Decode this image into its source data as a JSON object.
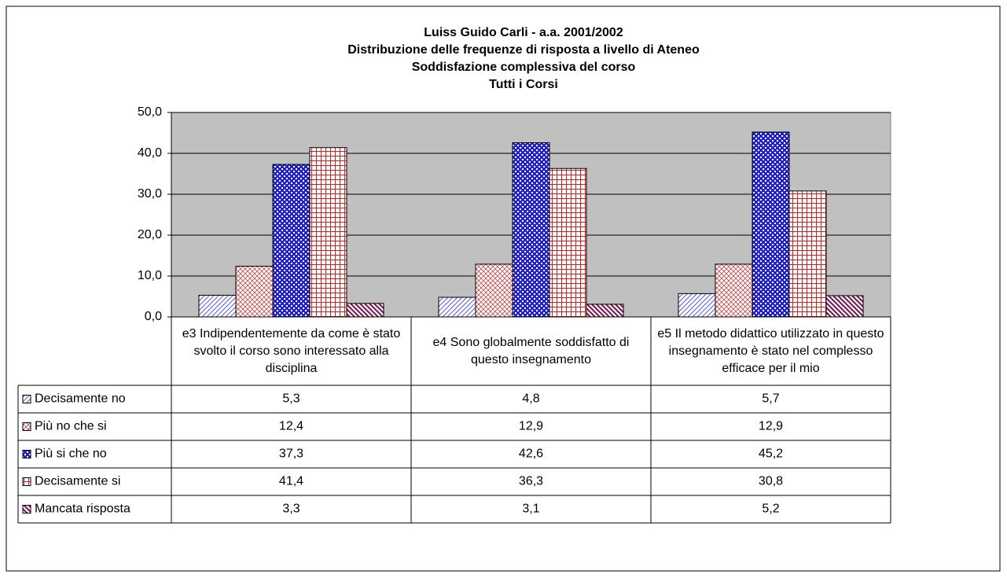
{
  "chart_data": {
    "type": "bar",
    "title": [
      "Luiss Guido Carli - a.a. 2001/2002",
      "Distribuzione delle frequenze di risposta a livello di Ateneo",
      "Soddisfazione complessiva del corso",
      "Tutti i Corsi"
    ],
    "categories": [
      "e3 Indipendentemente da come è stato svolto il corso sono interessato alla disciplina",
      "e4 Sono globalmente soddisfatto di questo insegnamento",
      "e5 Il metodo didattico utilizzato in questo insegnamento è stato nel complesso efficace per il mio"
    ],
    "series": [
      {
        "name": "Decisamente no",
        "color": "#5a5ad0",
        "values": [
          5.3,
          4.8,
          5.7
        ],
        "value_labels": [
          "5,3",
          "4,8",
          "5,7"
        ]
      },
      {
        "name": "Più no che si",
        "color": "#c04848",
        "values": [
          12.4,
          12.9,
          12.9
        ],
        "value_labels": [
          "12,4",
          "12,9",
          "12,9"
        ]
      },
      {
        "name": "Più si che no",
        "color": "#2424c8",
        "values": [
          37.3,
          42.6,
          45.2
        ],
        "value_labels": [
          "37,3",
          "42,6",
          "45,2"
        ]
      },
      {
        "name": "Decisamente si",
        "color": "#d02020",
        "values": [
          41.4,
          36.3,
          30.8
        ],
        "value_labels": [
          "41,4",
          "36,3",
          "30,8"
        ]
      },
      {
        "name": "Mancata risposta",
        "color": "#7a1e5a",
        "values": [
          3.3,
          3.1,
          5.2
        ],
        "value_labels": [
          "3,3",
          "3,1",
          "5,2"
        ]
      }
    ],
    "ylim": [
      0,
      50
    ],
    "yticks": [
      {
        "value": 0,
        "label": "0,0"
      },
      {
        "value": 10,
        "label": "10,0"
      },
      {
        "value": 20,
        "label": "20,0"
      },
      {
        "value": 30,
        "label": "30,0"
      },
      {
        "value": 40,
        "label": "40,0"
      },
      {
        "value": 50,
        "label": "50,0"
      }
    ],
    "grid": true
  }
}
